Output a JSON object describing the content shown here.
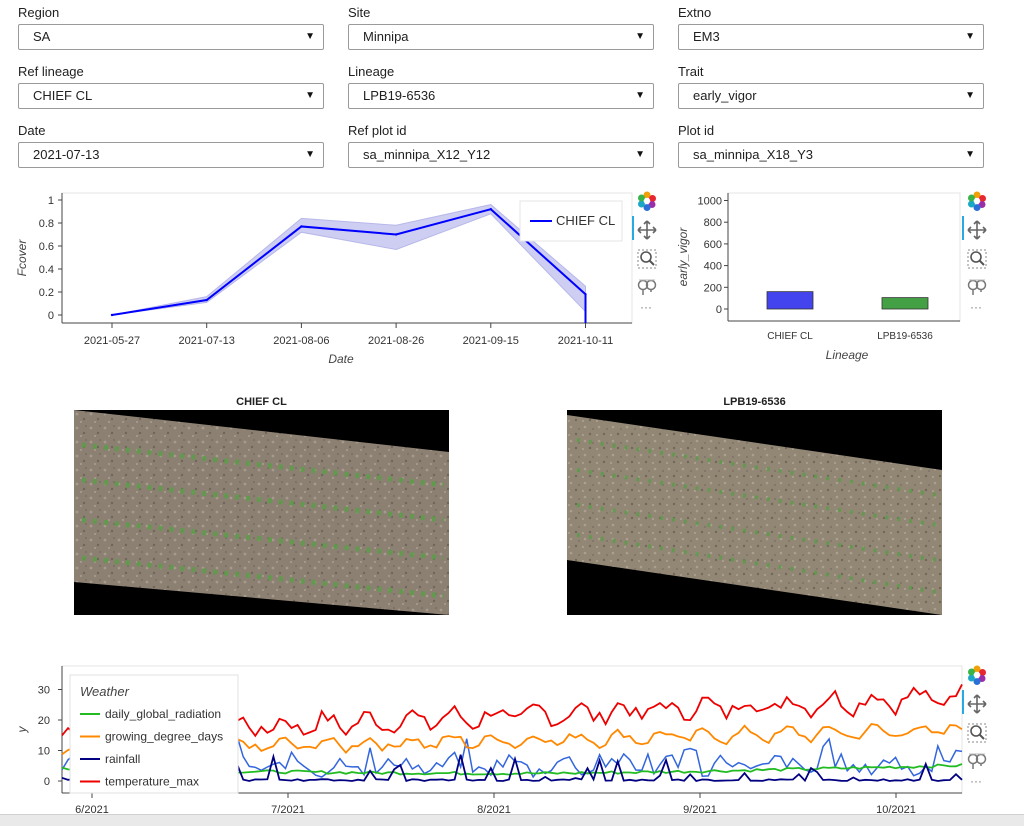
{
  "filters": [
    {
      "label": "Region",
      "value": "SA"
    },
    {
      "label": "Site",
      "value": "Minnipa"
    },
    {
      "label": "Extno",
      "value": "EM3"
    },
    {
      "label": "Ref lineage",
      "value": "CHIEF CL"
    },
    {
      "label": "Lineage",
      "value": "LPB19-6536"
    },
    {
      "label": "Trait",
      "value": "early_vigor"
    },
    {
      "label": "Date",
      "value": "2021-07-13"
    },
    {
      "label": "Ref plot id",
      "value": "sa_minnipa_X12_Y12"
    },
    {
      "label": "Plot id",
      "value": "sa_minnipa_X18_Y3"
    }
  ],
  "fcover_chart": {
    "ylabel": "Fcover",
    "xlabel": "Date",
    "legend": "CHIEF CL",
    "color": "#0000ff",
    "band_color": "#c9c9f2",
    "x": [
      "2021-05-27",
      "2021-07-13",
      "2021-08-06",
      "2021-08-26",
      "2021-09-15",
      "2021-10-11"
    ],
    "y": [
      0.0,
      0.13,
      0.77,
      0.7,
      0.92,
      0.18
    ],
    "y_low": [
      0.0,
      0.11,
      0.72,
      0.57,
      0.88,
      0.03
    ],
    "y_high": [
      0.0,
      0.16,
      0.84,
      0.78,
      0.96,
      0.25
    ],
    "yticks": [
      "0",
      "0.2",
      "0.4",
      "0.6",
      "0.8",
      "1"
    ]
  },
  "vigor_chart": {
    "ylabel": "early_vigor",
    "xlabel": "Lineage",
    "categories": [
      "CHIEF CL",
      "LPB19-6536"
    ],
    "values": [
      160,
      105
    ],
    "colors": [
      "#4444ee",
      "#44a044"
    ],
    "yticks": [
      "0",
      "200",
      "400",
      "600",
      "800",
      "1000"
    ]
  },
  "images": {
    "left_title": "CHIEF CL",
    "right_title": "LPB19-6536"
  },
  "weather_chart": {
    "legend_title": "Weather",
    "ylabel": "y",
    "yticks": [
      "0",
      "10",
      "20",
      "30"
    ],
    "xticks": [
      "6/2021",
      "7/2021",
      "8/2021",
      "9/2021",
      "10/2021"
    ],
    "series": [
      {
        "name": "daily_global_radiation",
        "color": "#22bb22"
      },
      {
        "name": "growing_degree_days",
        "color": "#ff8800"
      },
      {
        "name": "rainfall",
        "color": "#000080"
      },
      {
        "name": "temperature_max",
        "color": "#ee0000"
      }
    ],
    "extra_color": "#3366dd"
  },
  "toolbar_icons": [
    "bokeh-logo-icon",
    "pan-icon",
    "box-zoom-icon",
    "wheel-zoom-icon",
    "more-icon"
  ]
}
